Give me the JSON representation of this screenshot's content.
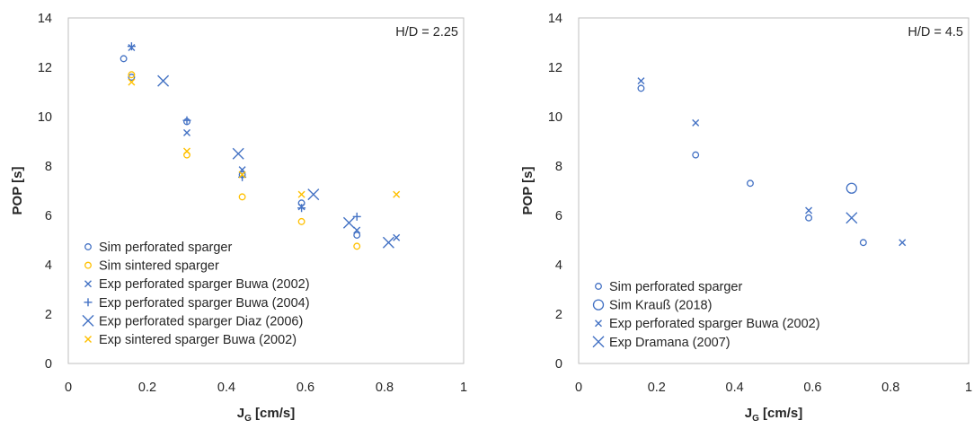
{
  "chart_data": [
    {
      "type": "scatter",
      "annotation": "H/D = 2.25",
      "xlabel": "J",
      "xlabel_sub": "G",
      "xlabel_unit": " [cm/s]",
      "ylabel": "POP [s]",
      "xlim": [
        0,
        1
      ],
      "ylim": [
        0,
        14
      ],
      "xticks": [
        "0",
        "0.2",
        "0.4",
        "0.6",
        "0.8",
        "1"
      ],
      "yticks": [
        "0",
        "2",
        "4",
        "6",
        "8",
        "10",
        "12",
        "14"
      ],
      "grid": false,
      "legend_position": "bottom-left",
      "series": [
        {
          "name": "Sim perforated sparger",
          "marker": "circle",
          "color": "#4472C4",
          "points": [
            [
              0.14,
              12.35
            ],
            [
              0.16,
              11.6
            ],
            [
              0.3,
              9.8
            ],
            [
              0.44,
              7.65
            ],
            [
              0.59,
              6.5
            ],
            [
              0.73,
              5.2
            ]
          ]
        },
        {
          "name": "Sim sintered sparger",
          "marker": "circle",
          "color": "#FFC000",
          "points": [
            [
              0.16,
              11.7
            ],
            [
              0.3,
              8.45
            ],
            [
              0.44,
              6.75
            ],
            [
              0.59,
              5.75
            ],
            [
              0.73,
              4.75
            ]
          ]
        },
        {
          "name": "Exp perforated sparger Buwa (2002)",
          "marker": "x",
          "color": "#4472C4",
          "points": [
            [
              0.16,
              12.8
            ],
            [
              0.3,
              9.35
            ],
            [
              0.44,
              7.85
            ],
            [
              0.59,
              6.35
            ],
            [
              0.73,
              5.4
            ],
            [
              0.83,
              5.1
            ]
          ]
        },
        {
          "name": "Exp perforated sparger Buwa (2004)",
          "marker": "plus",
          "color": "#4472C4",
          "points": [
            [
              0.16,
              12.85
            ],
            [
              0.3,
              9.85
            ],
            [
              0.44,
              7.55
            ],
            [
              0.59,
              6.3
            ],
            [
              0.73,
              5.95
            ]
          ]
        },
        {
          "name": "Exp perforated sparger Diaz (2006)",
          "marker": "x-large",
          "color": "#4472C4",
          "points": [
            [
              0.24,
              11.45
            ],
            [
              0.43,
              8.5
            ],
            [
              0.62,
              6.85
            ],
            [
              0.71,
              5.7
            ],
            [
              0.81,
              4.9
            ]
          ]
        },
        {
          "name": "Exp sintered sparger Buwa (2002)",
          "marker": "x",
          "color": "#FFC000",
          "points": [
            [
              0.16,
              11.4
            ],
            [
              0.3,
              8.6
            ],
            [
              0.44,
              7.65
            ],
            [
              0.59,
              6.85
            ],
            [
              0.83,
              6.85
            ]
          ]
        }
      ]
    },
    {
      "type": "scatter",
      "annotation": "H/D = 4.5",
      "xlabel": "J",
      "xlabel_sub": "G",
      "xlabel_unit": " [cm/s]",
      "ylabel": "POP [s]",
      "xlim": [
        0,
        1
      ],
      "ylim": [
        0,
        14
      ],
      "xticks": [
        "0",
        "0.2",
        "0.4",
        "0.6",
        "0.8",
        "1"
      ],
      "yticks": [
        "0",
        "2",
        "4",
        "6",
        "8",
        "10",
        "12",
        "14"
      ],
      "grid": false,
      "legend_position": "bottom-left",
      "series": [
        {
          "name": "Sim perforated sparger",
          "marker": "circle",
          "color": "#4472C4",
          "points": [
            [
              0.16,
              11.15
            ],
            [
              0.3,
              8.45
            ],
            [
              0.44,
              7.3
            ],
            [
              0.59,
              5.9
            ],
            [
              0.73,
              4.9
            ]
          ]
        },
        {
          "name": "Sim Krauß (2018)",
          "marker": "circle-large",
          "color": "#4472C4",
          "points": [
            [
              0.7,
              7.1
            ]
          ]
        },
        {
          "name": "Exp perforated sparger Buwa (2002)",
          "marker": "x",
          "color": "#4472C4",
          "points": [
            [
              0.16,
              11.45
            ],
            [
              0.3,
              9.75
            ],
            [
              0.59,
              6.2
            ],
            [
              0.83,
              4.9
            ]
          ]
        },
        {
          "name": "Exp Dramana (2007)",
          "marker": "x-large",
          "color": "#4472C4",
          "points": [
            [
              0.7,
              5.9
            ]
          ]
        }
      ]
    }
  ]
}
